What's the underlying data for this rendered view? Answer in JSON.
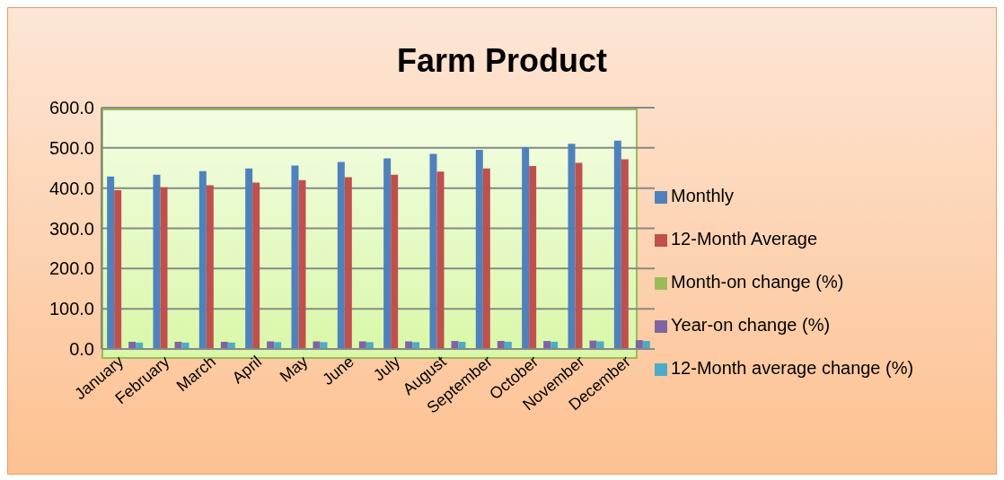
{
  "chart_data": {
    "type": "bar",
    "title": "Farm Product",
    "categories": [
      "January",
      "February",
      "March",
      "April",
      "May",
      "June",
      "July",
      "August",
      "September",
      "October",
      "November",
      "December"
    ],
    "series": [
      {
        "name": "Monthly",
        "color": "#4f81bd",
        "values": [
          429,
          433,
          442,
          449,
          456,
          465,
          474,
          485,
          495,
          502,
          510,
          518
        ]
      },
      {
        "name": "12-Month Average",
        "color": "#c0504d",
        "values": [
          395,
          402,
          407,
          414,
          420,
          427,
          433,
          441,
          449,
          455,
          463,
          472
        ]
      },
      {
        "name": "Month-on change (%)",
        "color": "#9bbb59",
        "values": [
          null,
          null,
          null,
          null,
          null,
          null,
          null,
          null,
          null,
          null,
          null,
          null
        ]
      },
      {
        "name": "Year-on change (%)",
        "color": "#8064a2",
        "values": [
          18,
          18,
          18,
          19,
          19,
          19,
          19,
          20,
          20,
          20,
          21,
          22
        ]
      },
      {
        "name": "12-Month average change (%)",
        "color": "#4bacc6",
        "values": [
          16,
          16,
          16,
          17,
          17,
          17,
          17,
          18,
          18,
          18,
          19,
          20
        ]
      }
    ],
    "ylim": [
      0,
      600
    ],
    "yticks": [
      {
        "value": 0,
        "label": "0.0"
      },
      {
        "value": 100,
        "label": "100.0"
      },
      {
        "value": 200,
        "label": "200.0"
      },
      {
        "value": 300,
        "label": "300.0"
      },
      {
        "value": 400,
        "label": "400.0"
      },
      {
        "value": 500,
        "label": "500.0"
      },
      {
        "value": 600,
        "label": "600.0"
      }
    ],
    "grid": "y",
    "legend": "right"
  }
}
